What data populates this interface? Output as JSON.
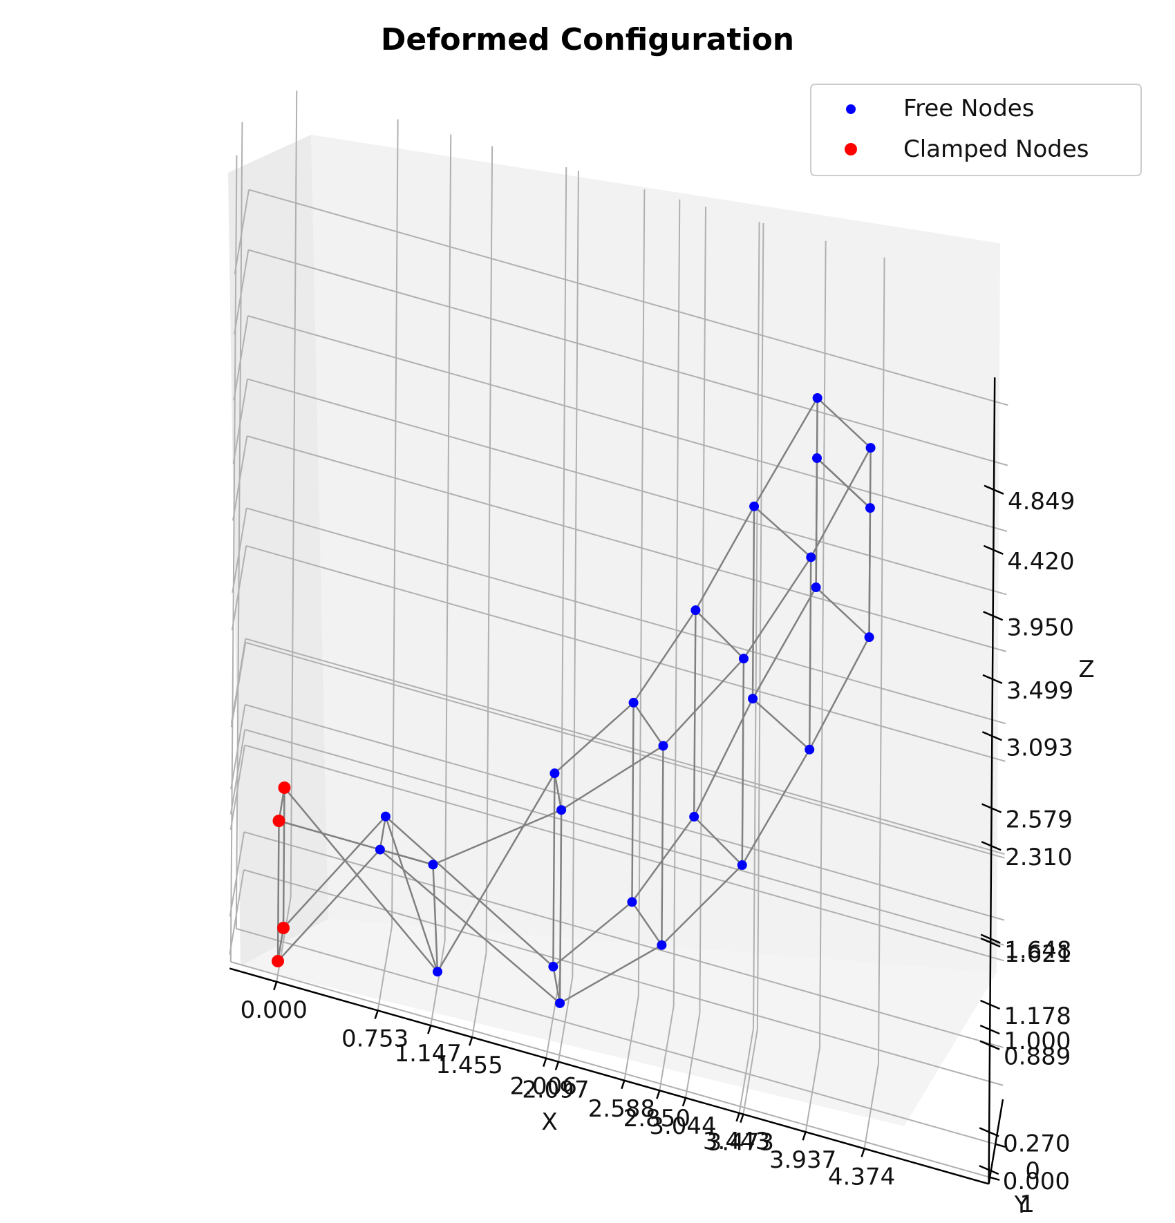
{
  "chart_data": {
    "type": "scatter",
    "title": "Deformed Configuration",
    "xlabel": "X",
    "ylabel": "Y",
    "zlabel": "Z",
    "x_ticks": [
      "0.000",
      "0.753",
      "1.147",
      "1.455",
      "2.006",
      "2.097",
      "2.588",
      "2.850",
      "3.044",
      "3.443",
      "3.473",
      "3.937",
      "4.374"
    ],
    "y_ticks": [
      "0",
      "1"
    ],
    "z_ticks": [
      "0.000",
      "0.270",
      "0.889",
      "1.000",
      "1.178",
      "1.621",
      "1.648",
      "2.310",
      "2.579",
      "3.093",
      "3.499",
      "3.950",
      "4.420",
      "4.849"
    ],
    "grid": true,
    "legend_position": "top-right",
    "series": [
      {
        "name": "Free Nodes",
        "color": "#0000ff",
        "points": [
          [
            0.753,
            0,
            1.0
          ],
          [
            0.753,
            1,
            1.0
          ],
          [
            1.147,
            0,
            0.0
          ],
          [
            1.147,
            1,
            1.0
          ],
          [
            2.006,
            0,
            0.27
          ],
          [
            2.097,
            1,
            0.27
          ],
          [
            2.006,
            0,
            1.648
          ],
          [
            2.097,
            1,
            1.648
          ],
          [
            2.588,
            0,
            0.889
          ],
          [
            2.85,
            1,
            0.889
          ],
          [
            2.588,
            0,
            2.31
          ],
          [
            2.85,
            1,
            2.31
          ],
          [
            3.044,
            0,
            1.621
          ],
          [
            3.443,
            1,
            1.621
          ],
          [
            3.044,
            0,
            3.093
          ],
          [
            3.443,
            1,
            3.093
          ],
          [
            3.473,
            0,
            2.579
          ],
          [
            3.937,
            1,
            2.579
          ],
          [
            3.473,
            0,
            3.95
          ],
          [
            3.937,
            1,
            3.95
          ],
          [
            3.937,
            0,
            3.499
          ],
          [
            4.374,
            1,
            3.499
          ],
          [
            3.937,
            0,
            4.849
          ],
          [
            4.374,
            1,
            4.849
          ],
          [
            3.937,
            0,
            4.42
          ],
          [
            4.374,
            1,
            4.42
          ]
        ]
      },
      {
        "name": "Clamped Nodes",
        "color": "#ff0000",
        "points": [
          [
            0.0,
            0,
            0.0
          ],
          [
            0.0,
            1,
            0.0
          ],
          [
            0.0,
            0,
            1.0
          ],
          [
            0.0,
            1,
            1.0
          ]
        ]
      }
    ],
    "edge_color": "#808080"
  }
}
